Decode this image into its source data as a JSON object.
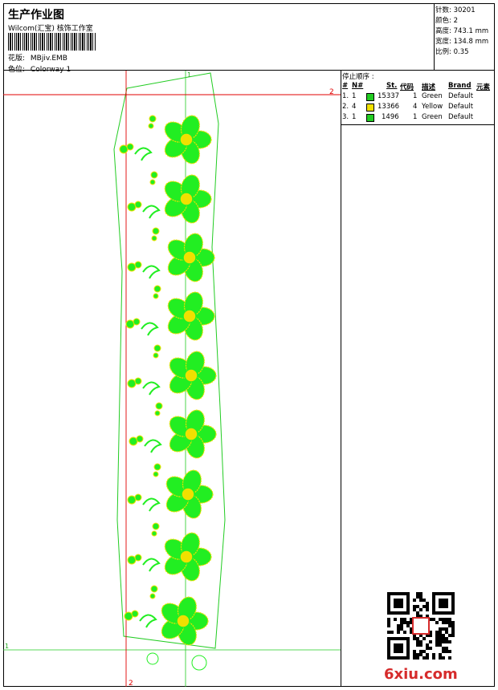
{
  "header": {
    "title": "生产作业图",
    "subtitle": "Wilcom(汇宝) 核饰工作室",
    "design_label": "花版:",
    "design_value": "MBjiv.EMB",
    "colorway_label": "色位:",
    "colorway_value": "Colorway 1"
  },
  "info": {
    "stitches_label": "针数:",
    "stitches_value": "30201",
    "colors_label": "颜色:",
    "colors_value": "2",
    "height_label": "高度:",
    "height_value": "743.1 mm",
    "width_label": "宽度:",
    "width_value": "134.8 mm",
    "scale_label": "比例:",
    "scale_value": "0.35"
  },
  "stop_sequence": {
    "title": "停止顺序 :",
    "headers": {
      "num": "#",
      "needle": "N#",
      "stitches": "St.",
      "code": "代码",
      "description": "描述",
      "brand": "Brand",
      "element": "元素"
    },
    "rows": [
      {
        "num": "1.",
        "needle": "1",
        "color": "#22cc22",
        "stitches": "15337",
        "code": "1",
        "description": "Green",
        "brand": "Default"
      },
      {
        "num": "2.",
        "needle": "4",
        "color": "#f0e000",
        "stitches": "13366",
        "code": "4",
        "description": "Yellow",
        "brand": "Default"
      },
      {
        "num": "3.",
        "needle": "1",
        "color": "#22cc22",
        "stitches": "1496",
        "code": "1",
        "description": "Green",
        "brand": "Default"
      }
    ]
  },
  "canvas": {
    "marker_1_top": "1",
    "marker_2_right": "2",
    "marker_1_left": "1",
    "marker_2_bottom": "2",
    "guide_color": "#22cc22",
    "axis_color": "#e00000",
    "fill_green": "#22ee22",
    "fill_yellow": "#f0e000"
  },
  "watermark": {
    "text": "6xiu.com"
  }
}
